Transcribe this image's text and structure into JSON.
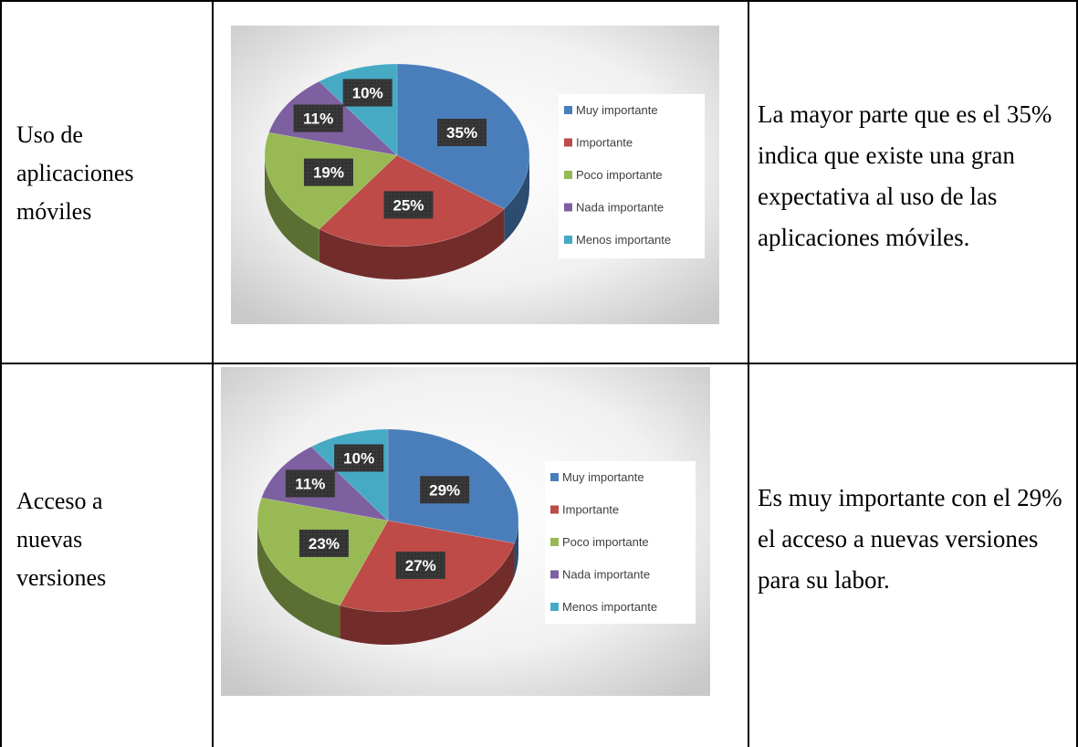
{
  "table": {
    "rows": [
      {
        "label": "Uso de aplicaciones móviles",
        "chart": {
          "type": "pie",
          "categories": [
            "Muy importante",
            "Importante",
            "Poco importante",
            "Nada importante",
            "Menos importante"
          ],
          "values": [
            35,
            25,
            19,
            11,
            10
          ],
          "value_labels": [
            "35%",
            "25%",
            "19%",
            "11%",
            "10%"
          ],
          "colors": [
            "#4a7ebb",
            "#be4b48",
            "#98b954",
            "#7d60a0",
            "#46aac5"
          ],
          "legend": "right"
        },
        "comment": "La mayor parte que es el 35% indica que existe una gran expectativa al uso de las aplicaciones móviles."
      },
      {
        "label": "Acceso a nuevas versiones",
        "chart": {
          "type": "pie",
          "categories": [
            "Muy importante",
            "Importante",
            "Poco importante",
            "Nada importante",
            "Menos importante"
          ],
          "values": [
            29,
            27,
            23,
            11,
            10
          ],
          "value_labels": [
            "29%",
            "27%",
            "23%",
            "11%",
            "10%"
          ],
          "colors": [
            "#4a7ebb",
            "#be4b48",
            "#98b954",
            "#7d60a0",
            "#46aac5"
          ],
          "legend": "right"
        },
        "comment": "Es muy importante con el 29% el acceso a nuevas versiones para su labor."
      }
    ]
  }
}
